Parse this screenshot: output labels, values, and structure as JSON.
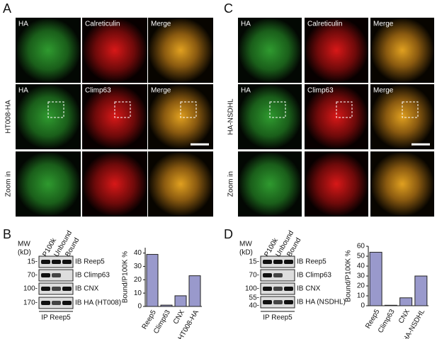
{
  "panels": {
    "a": "A",
    "b": "B",
    "c": "C",
    "d": "D"
  },
  "left": {
    "row_label": "HT008-HA",
    "zoom_label": "Zoom in",
    "row1": [
      "HA",
      "Calreticulin",
      "Merge"
    ],
    "row2": [
      "HA",
      "Climp63",
      "Merge"
    ]
  },
  "right": {
    "row_label": "HA-NSDHL",
    "zoom_label": "Zoom in",
    "row1": [
      "HA",
      "Calreticulin",
      "Merge"
    ],
    "row2": [
      "HA",
      "Climp63",
      "Merge"
    ]
  },
  "blots": [
    {
      "mw": "MW",
      "unit": "(kD)",
      "lanes": [
        "P100k",
        "Unbound",
        "Bound"
      ],
      "markers": [
        "15-",
        "70-",
        "100-",
        "170-"
      ],
      "bands": [
        "IB Reep5",
        "IB Climp63",
        "IB CNX",
        "IB HA (HT008)"
      ],
      "ip": "IP Reep5"
    },
    {
      "mw": "MW",
      "unit": "(kD)",
      "lanes": [
        "P100k",
        "Unbound",
        "Bound"
      ],
      "markers": [
        "15-",
        "70-",
        "100-",
        "55-",
        "40-"
      ],
      "bands": [
        "IB Reep5",
        "IB Climp63",
        "IB CNX",
        "IB HA (NSDHL)"
      ],
      "ip": "IP Reep5"
    }
  ],
  "chart_data": [
    {
      "type": "bar",
      "y_label": "Bound/P100K %",
      "categories": [
        "Reep5",
        "Climp63",
        "CNX",
        "HT008-HA"
      ],
      "values": [
        39,
        1,
        8,
        23
      ],
      "color": "#9999cc",
      "ylim": [
        0,
        44
      ],
      "yticks": [
        0,
        10,
        20,
        30,
        40
      ]
    },
    {
      "type": "bar",
      "y_label": "Bound/P100K %",
      "categories": [
        "Reep5",
        "Climp63",
        "CNX",
        "HA-NSDHL"
      ],
      "values": [
        54,
        0.5,
        8,
        30
      ],
      "color": "#9999cc",
      "ylim": [
        0,
        60
      ],
      "yticks": [
        0,
        10,
        20,
        30,
        40,
        50,
        60
      ]
    }
  ]
}
